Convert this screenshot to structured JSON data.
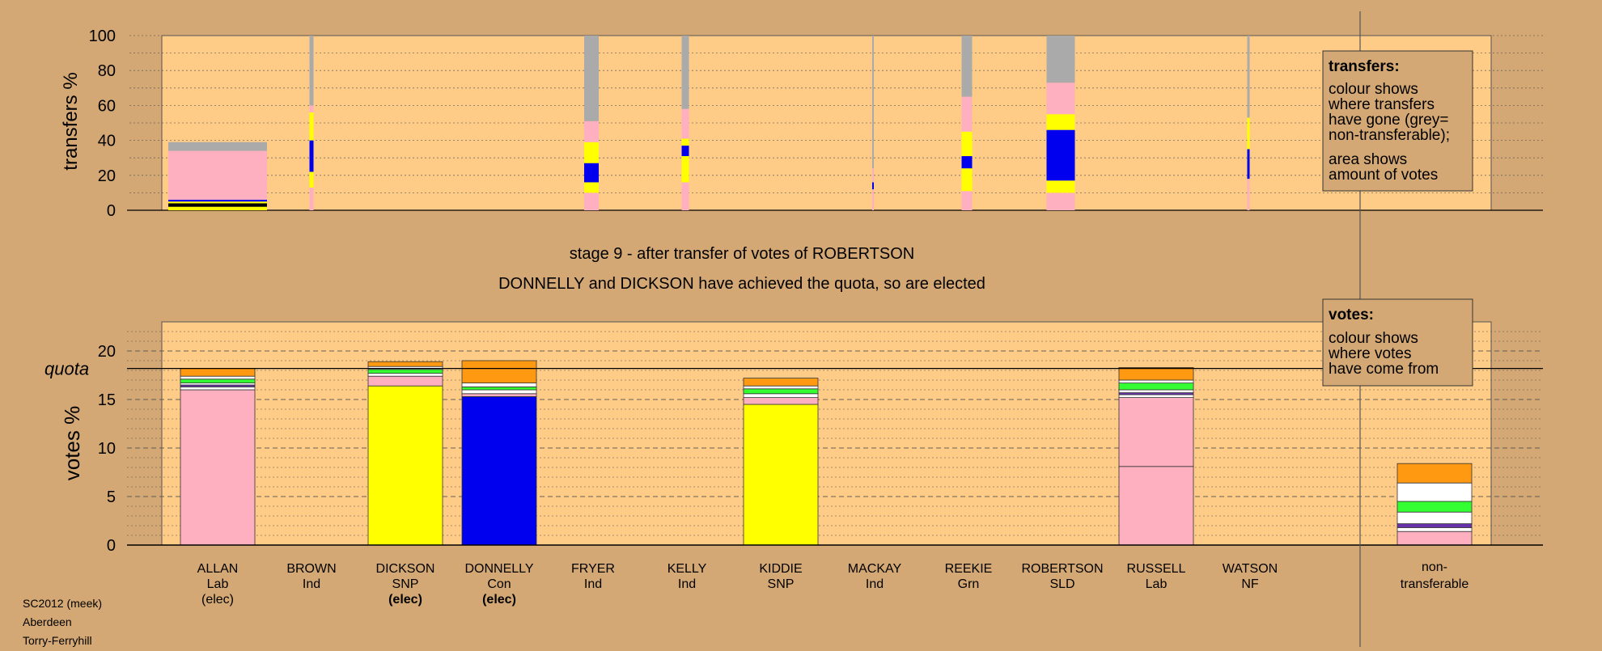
{
  "colors": {
    "background": "#d4a874",
    "panel": "#ffcc88",
    "pink": "#ffb0c0",
    "yellow": "#ffff00",
    "blue": "#0000ee",
    "grey": "#aaaaaa",
    "orange": "#ff9911",
    "green": "#33ff33",
    "white": "#ffffff",
    "purple": "#6633aa",
    "black": "#000000"
  },
  "titles": {
    "stage": "stage 9 - after transfer of votes of ROBERTSON",
    "elected": "DONNELLY and DICKSON have achieved the quota, so are elected"
  },
  "transfers_legend": {
    "heading": "transfers:",
    "line1": "colour shows",
    "line2": "where transfers",
    "line3": "have gone (grey=",
    "line4": "non-transferable);",
    "line5": "area shows",
    "line6": "amount of votes"
  },
  "votes_legend": {
    "heading": "votes:",
    "line1": "colour shows",
    "line2": "where votes",
    "line3": "have come from"
  },
  "quota_label": "quota",
  "footer": {
    "line1": "SC2012 (meek)",
    "line2": "Aberdeen",
    "line3": "Torry-Ferryhill"
  },
  "chart_data": [
    {
      "type": "bar",
      "ylabel": "transfers %",
      "ylim": [
        0,
        100
      ],
      "yticks": [
        "0",
        "20",
        "40",
        "60",
        "80",
        "100"
      ],
      "note": "stacked transfer bars (percent of transferred votes, bottom to top)",
      "bars": [
        {
          "candidate": "ALLAN",
          "segments": [
            [
              "yellow",
              2
            ],
            [
              "black",
              2
            ],
            [
              "yellow",
              1
            ],
            [
              "blue",
              1
            ],
            [
              "pink",
              3
            ],
            [
              "pink",
              25
            ],
            [
              "grey",
              5
            ]
          ]
        },
        {
          "candidate": "BROWN",
          "segments": [
            [
              "pink",
              13
            ],
            [
              "yellow",
              9
            ],
            [
              "blue",
              18
            ],
            [
              "yellow",
              16
            ],
            [
              "pink",
              4
            ],
            [
              "grey",
              40
            ]
          ]
        },
        {
          "candidate": "FRYER",
          "segments": [
            [
              "pink",
              10
            ],
            [
              "yellow",
              6
            ],
            [
              "blue",
              11
            ],
            [
              "yellow",
              12
            ],
            [
              "pink",
              12
            ],
            [
              "grey",
              49
            ]
          ]
        },
        {
          "candidate": "KELLY",
          "segments": [
            [
              "pink",
              16
            ],
            [
              "yellow",
              15
            ],
            [
              "blue",
              6
            ],
            [
              "yellow",
              4
            ],
            [
              "pink",
              17
            ],
            [
              "grey",
              42
            ]
          ]
        },
        {
          "candidate": "MACKAY",
          "segments": [
            [
              "pink",
              12
            ],
            [
              "blue",
              4
            ],
            [
              "pink",
              8
            ],
            [
              "grey",
              76
            ]
          ]
        },
        {
          "candidate": "REEKIE",
          "segments": [
            [
              "pink",
              11
            ],
            [
              "yellow",
              13
            ],
            [
              "blue",
              7
            ],
            [
              "yellow",
              14
            ],
            [
              "pink",
              20
            ],
            [
              "grey",
              35
            ]
          ]
        },
        {
          "candidate": "ROBERTSON",
          "segments": [
            [
              "pink",
              10
            ],
            [
              "yellow",
              7
            ],
            [
              "blue",
              29
            ],
            [
              "yellow",
              9
            ],
            [
              "pink",
              18
            ],
            [
              "grey",
              27
            ]
          ]
        },
        {
          "candidate": "WATSON",
          "segments": [
            [
              "pink",
              18
            ],
            [
              "blue",
              17
            ],
            [
              "yellow",
              18
            ],
            [
              "grey",
              47
            ]
          ]
        }
      ]
    },
    {
      "type": "bar",
      "ylabel": "votes %",
      "ylim": [
        0,
        23
      ],
      "yticks": [
        "0",
        "5",
        "10",
        "15",
        "20"
      ],
      "quota": 18.2,
      "candidates": [
        {
          "name": "ALLAN",
          "party": "Lab",
          "status": "(elec)",
          "segments": [
            [
              "pink",
              16.0
            ],
            [
              "white",
              0.3
            ],
            [
              "purple",
              0.2
            ],
            [
              "white",
              0.2
            ],
            [
              "green",
              0.4
            ],
            [
              "white",
              0.3
            ],
            [
              "orange",
              0.8
            ]
          ]
        },
        {
          "name": "BROWN",
          "party": "Ind",
          "status": "",
          "segments": []
        },
        {
          "name": "DICKSON",
          "party": "SNP",
          "status": "(elec)",
          "segments": [
            [
              "yellow",
              16.4
            ],
            [
              "pink",
              1.0
            ],
            [
              "white",
              0.3
            ],
            [
              "green",
              0.4
            ],
            [
              "white",
              0.3
            ],
            [
              "orange",
              0.5
            ]
          ]
        },
        {
          "name": "DONNELLY",
          "party": "Con",
          "status": "(elec)",
          "segments": [
            [
              "blue",
              15.3
            ],
            [
              "pink",
              0.3
            ],
            [
              "white",
              0.4
            ],
            [
              "green",
              0.3
            ],
            [
              "white",
              0.4
            ],
            [
              "orange",
              2.3
            ]
          ]
        },
        {
          "name": "FRYER",
          "party": "Ind",
          "status": "",
          "segments": []
        },
        {
          "name": "KELLY",
          "party": "Ind",
          "status": "",
          "segments": []
        },
        {
          "name": "KIDDIE",
          "party": "SNP",
          "status": "",
          "segments": [
            [
              "yellow",
              14.5
            ],
            [
              "pink",
              0.7
            ],
            [
              "white",
              0.4
            ],
            [
              "green",
              0.5
            ],
            [
              "white",
              0.3
            ],
            [
              "orange",
              0.8
            ]
          ]
        },
        {
          "name": "MACKAY",
          "party": "Ind",
          "status": "",
          "segments": []
        },
        {
          "name": "REEKIE",
          "party": "Grn",
          "status": "",
          "segments": []
        },
        {
          "name": "ROBERTSON",
          "party": "SLD",
          "status": "",
          "segments": []
        },
        {
          "name": "RUSSELL",
          "party": "Lab",
          "status": "",
          "segments": [
            [
              "pink",
              8.1
            ],
            [
              "pink",
              7.1
            ],
            [
              "white",
              0.3
            ],
            [
              "purple",
              0.2
            ],
            [
              "white",
              0.3
            ],
            [
              "green",
              0.7
            ],
            [
              "white",
              0.3
            ],
            [
              "orange",
              1.3
            ]
          ]
        },
        {
          "name": "WATSON",
          "party": "NF",
          "status": "",
          "segments": []
        }
      ],
      "nontransferable": {
        "label1": "non-",
        "label2": "transferable",
        "segments": [
          [
            "pink",
            1.4
          ],
          [
            "white",
            0.4
          ],
          [
            "purple",
            0.4
          ],
          [
            "white",
            1.2
          ],
          [
            "green",
            1.1
          ],
          [
            "white",
            1.9
          ],
          [
            "orange",
            2.0
          ]
        ]
      }
    }
  ]
}
